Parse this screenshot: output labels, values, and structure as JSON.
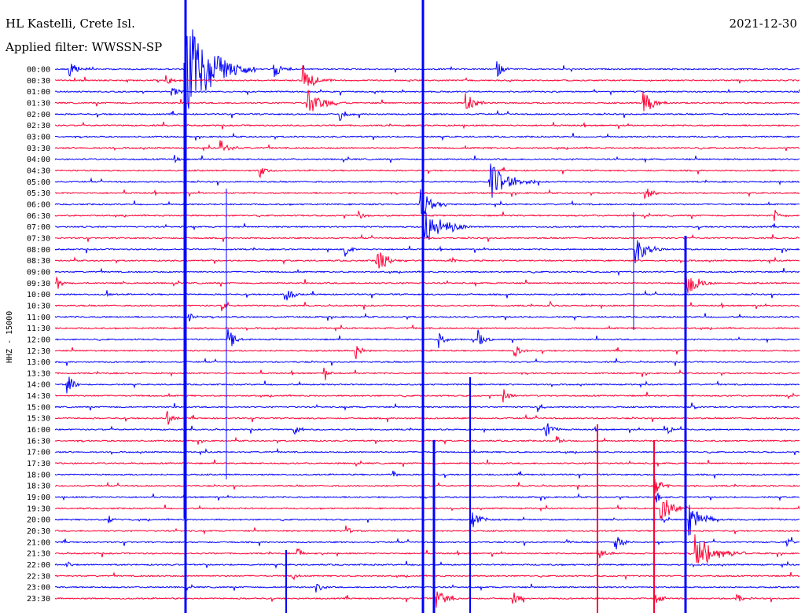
{
  "header": {
    "station": "HL Kastelli, Crete Isl.",
    "filter": "Applied filter: WWSSN-SP",
    "date": "2021-12-30"
  },
  "chart_data": {
    "type": "line",
    "title": "HL Kastelli, Crete Isl.",
    "subtitle": "Applied filter: WWSSN-SP",
    "date": "2021-12-30",
    "ylabel": "HHZ - 15000",
    "colors": {
      "even": "#0000ff",
      "odd": "#ff0033"
    },
    "rows": [
      {
        "label": "00:00",
        "color": "blue"
      },
      {
        "label": "00:30",
        "color": "red"
      },
      {
        "label": "01:00",
        "color": "blue"
      },
      {
        "label": "01:30",
        "color": "red"
      },
      {
        "label": "02:00",
        "color": "blue"
      },
      {
        "label": "02:30",
        "color": "red"
      },
      {
        "label": "03:00",
        "color": "blue"
      },
      {
        "label": "03:30",
        "color": "red"
      },
      {
        "label": "04:00",
        "color": "blue"
      },
      {
        "label": "04:30",
        "color": "red"
      },
      {
        "label": "05:00",
        "color": "blue"
      },
      {
        "label": "05:30",
        "color": "red"
      },
      {
        "label": "06:00",
        "color": "blue"
      },
      {
        "label": "06:30",
        "color": "red"
      },
      {
        "label": "07:00",
        "color": "blue"
      },
      {
        "label": "07:30",
        "color": "red"
      },
      {
        "label": "08:00",
        "color": "blue"
      },
      {
        "label": "08:30",
        "color": "red"
      },
      {
        "label": "09:00",
        "color": "blue"
      },
      {
        "label": "09:30",
        "color": "red"
      },
      {
        "label": "10:00",
        "color": "blue"
      },
      {
        "label": "10:30",
        "color": "red"
      },
      {
        "label": "11:00",
        "color": "blue"
      },
      {
        "label": "11:30",
        "color": "red"
      },
      {
        "label": "12:00",
        "color": "blue"
      },
      {
        "label": "12:30",
        "color": "red"
      },
      {
        "label": "13:00",
        "color": "blue"
      },
      {
        "label": "13:30",
        "color": "red"
      },
      {
        "label": "14:00",
        "color": "blue"
      },
      {
        "label": "14:30",
        "color": "red"
      },
      {
        "label": "15:00",
        "color": "blue"
      },
      {
        "label": "15:30",
        "color": "red"
      },
      {
        "label": "16:00",
        "color": "blue"
      },
      {
        "label": "16:30",
        "color": "red"
      },
      {
        "label": "17:00",
        "color": "blue"
      },
      {
        "label": "17:30",
        "color": "red"
      },
      {
        "label": "18:00",
        "color": "blue"
      },
      {
        "label": "18:30",
        "color": "red"
      },
      {
        "label": "19:00",
        "color": "blue"
      },
      {
        "label": "19:30",
        "color": "red"
      },
      {
        "label": "20:00",
        "color": "blue"
      },
      {
        "label": "20:30",
        "color": "red"
      },
      {
        "label": "21:00",
        "color": "blue"
      },
      {
        "label": "21:30",
        "color": "red"
      },
      {
        "label": "22:00",
        "color": "blue"
      },
      {
        "label": "22:30",
        "color": "red"
      },
      {
        "label": "23:00",
        "color": "blue"
      },
      {
        "label": "23:30",
        "color": "red"
      }
    ]
  }
}
